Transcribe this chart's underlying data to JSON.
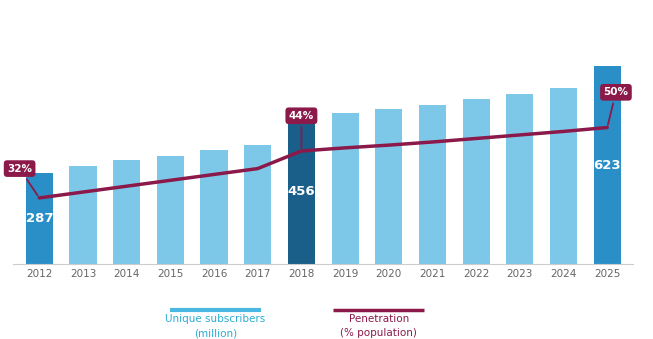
{
  "years": [
    2012,
    2013,
    2014,
    2015,
    2016,
    2017,
    2018,
    2019,
    2020,
    2021,
    2022,
    2023,
    2024,
    2025
  ],
  "subscribers": [
    287,
    310,
    328,
    342,
    360,
    375,
    456,
    477,
    490,
    503,
    520,
    535,
    556,
    623
  ],
  "penetration": [
    32,
    33.5,
    35,
    36.5,
    38,
    39.5,
    44,
    44.8,
    45.5,
    46.3,
    47.2,
    48.1,
    49.0,
    50
  ],
  "bar_colors": [
    "#2b8fc7",
    "#7dc8e8",
    "#7dc8e8",
    "#7dc8e8",
    "#7dc8e8",
    "#7dc8e8",
    "#1a5e8a",
    "#7dc8e8",
    "#7dc8e8",
    "#7dc8e8",
    "#7dc8e8",
    "#7dc8e8",
    "#7dc8e8",
    "#2b8fc7"
  ],
  "line_color": "#8b1a4a",
  "annotation_bg_color": "#8b1a4a",
  "annotation_text_color": "#ffffff",
  "legend_bar_color_light": "#4ab8e0",
  "legend_line_color": "#8b1a4a",
  "legend_text_color": "#2bacd6",
  "legend_text_color2": "#8b1a4a",
  "background_color": "#ffffff",
  "bar_ylim_max": 800,
  "line_ylim_min": 15,
  "line_ylim_max": 80
}
